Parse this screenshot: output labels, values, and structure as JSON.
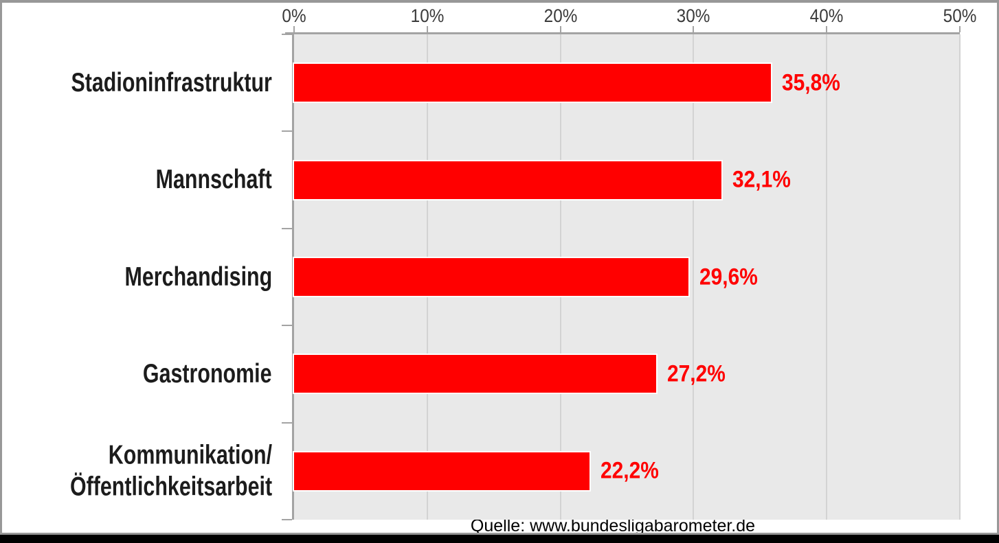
{
  "chart_data": {
    "type": "bar",
    "orientation": "horizontal",
    "categories": [
      "Stadioninfrastruktur",
      "Mannschaft",
      "Merchandising",
      "Gastronomie",
      "Kommunikation/\nÖffentlichkeitsarbeit"
    ],
    "values": [
      35.8,
      32.1,
      29.6,
      27.2,
      22.2
    ],
    "value_labels": [
      "35,8%",
      "32,1%",
      "29,6%",
      "27,2%",
      "22,2%"
    ],
    "x_axis": {
      "position": "top",
      "tick_labels": [
        "0%",
        "10%",
        "20%",
        "30%",
        "40%",
        "50%"
      ],
      "tick_values": [
        0,
        10,
        20,
        30,
        40,
        50
      ],
      "range": [
        0,
        50
      ],
      "grid": true
    },
    "y_axis": {
      "grid": false
    },
    "legend_position": "none",
    "source": "Quelle: www.bundesligabarometer.de",
    "colors": {
      "bar": "#ff0000",
      "bar_border": "#ffffff",
      "value_label": "#ff0000",
      "plot_background": "#e9e9e9",
      "gridline": "#d3d3d3",
      "axis": "#a3a3a3",
      "category_label": "#1c1c1c",
      "tick_label": "#3a3a3a",
      "source_text": "#000000",
      "frame_border": "#989898",
      "frame_bottom_bar": "#000000"
    }
  }
}
